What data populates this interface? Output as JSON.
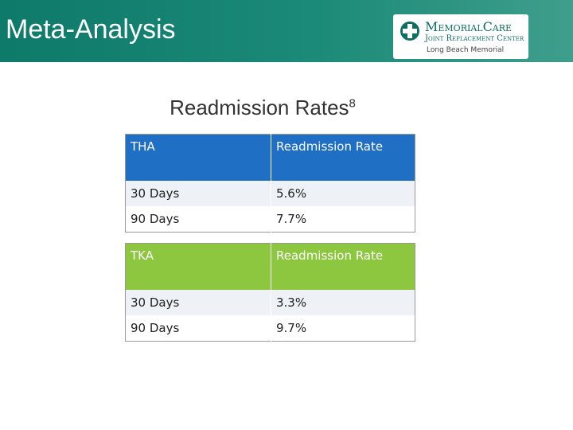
{
  "header": {
    "title": "Meta-Analysis",
    "logo": {
      "name": "MemorialCare",
      "subtitle": "Joint Replacement Center",
      "location": "Long Beach Memorial"
    }
  },
  "heading": {
    "text": "Readmission Rates",
    "ref": "8"
  },
  "tables": [
    {
      "header": [
        "THA",
        "Readmission Rate"
      ],
      "rows": [
        [
          "30 Days",
          "5.6%"
        ],
        [
          "90 Days",
          "7.7%"
        ]
      ]
    },
    {
      "header": [
        "TKA",
        "Readmission Rate"
      ],
      "rows": [
        [
          "30 Days",
          "3.3%"
        ],
        [
          "90 Days",
          "9.7%"
        ]
      ]
    }
  ]
}
